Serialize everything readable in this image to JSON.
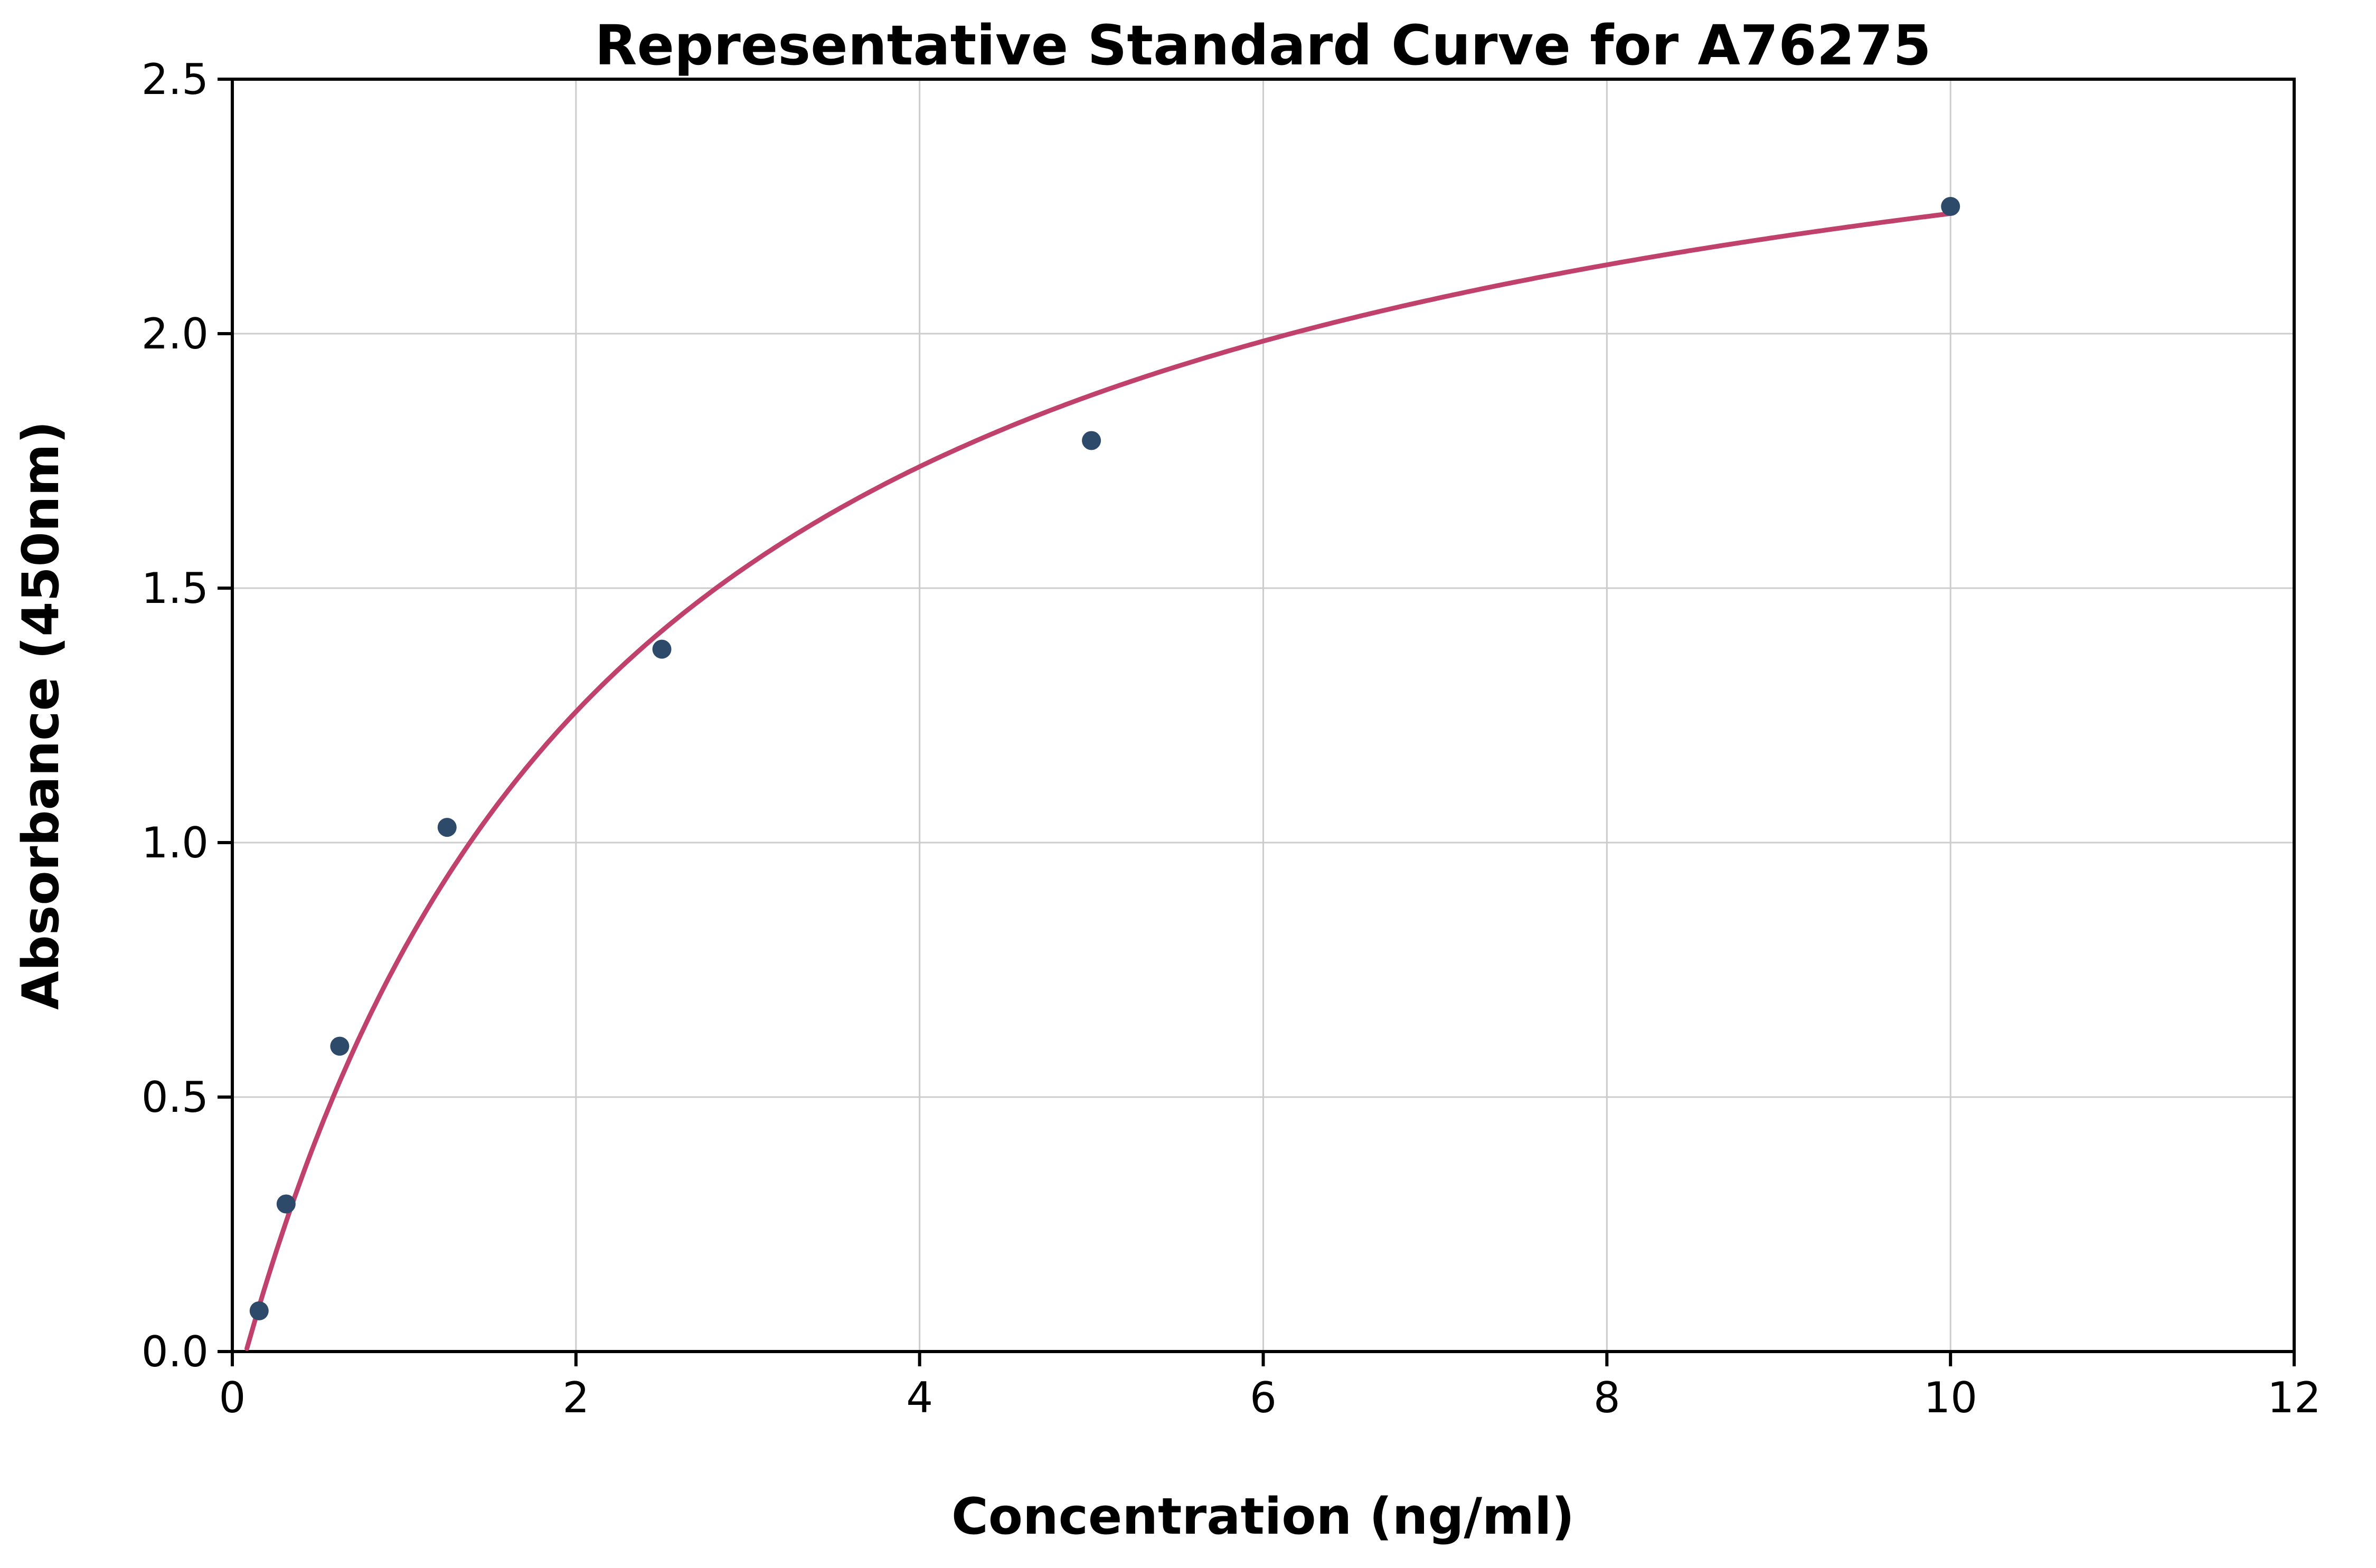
{
  "chart_data": {
    "type": "scatter",
    "title": "Representative Standard Curve for A76275",
    "xlabel": "Concentration (ng/ml)",
    "ylabel": "Absorbance (450nm)",
    "xlim": [
      0,
      12
    ],
    "ylim": [
      0,
      2.5
    ],
    "x_ticks": [
      0,
      2,
      4,
      6,
      8,
      10,
      12
    ],
    "x_tick_labels": [
      "0",
      "2",
      "4",
      "6",
      "8",
      "10",
      "12"
    ],
    "y_ticks": [
      0,
      0.5,
      1.0,
      1.5,
      2.0,
      2.5
    ],
    "y_tick_labels": [
      "0.0",
      "0.5",
      "1.0",
      "1.5",
      "2.0",
      "2.5"
    ],
    "grid": true,
    "legend": "none",
    "points": [
      {
        "x": 0.156,
        "y": 0.08
      },
      {
        "x": 0.313,
        "y": 0.29
      },
      {
        "x": 0.625,
        "y": 0.6
      },
      {
        "x": 1.25,
        "y": 1.03
      },
      {
        "x": 2.5,
        "y": 1.38
      },
      {
        "x": 5.0,
        "y": 1.79
      },
      {
        "x": 10.0,
        "y": 2.25
      }
    ],
    "fit_curve": {
      "model": "4pl",
      "min": -0.1,
      "max": 2.75,
      "ec50": 2.2,
      "hill": 1.0,
      "x_start": 0.01,
      "x_end": 10.0
    },
    "colors": {
      "point": "#2e4a6b",
      "curve": "#c0426c",
      "grid": "#cccccc",
      "axis": "#000000",
      "background": "#ffffff"
    }
  }
}
